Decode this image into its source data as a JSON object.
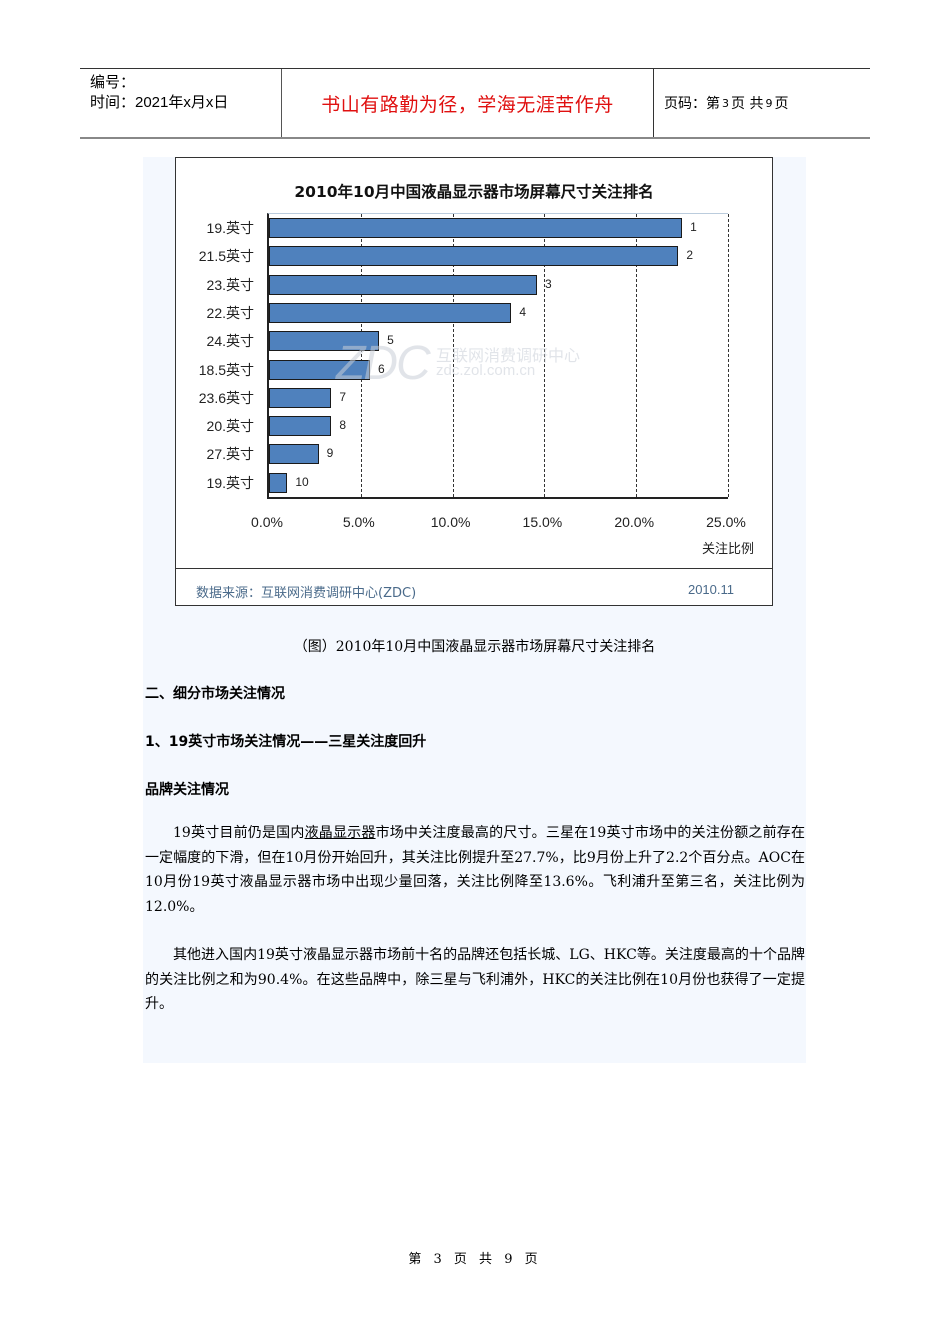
{
  "header": {
    "number_label": "编号：",
    "time_label": "时间：2021年x月x日",
    "motto": "书山有路勤为径，学海无涯苦作舟",
    "page_prefix": "页码：第",
    "page_current": "3",
    "page_mid": "页 共",
    "page_total": "9",
    "page_suffix": "页"
  },
  "chart_data": {
    "type": "bar",
    "orientation": "horizontal",
    "title": "2010年10月中国液晶显示器市场屏幕尺寸关注排名",
    "categories": [
      "19.英寸",
      "21.5英寸",
      "23.英寸",
      "22.英寸",
      "24.英寸",
      "18.5英寸",
      "23.6英寸",
      "20.英寸",
      "27.英寸",
      "19.英寸"
    ],
    "values": [
      22.5,
      22.3,
      14.6,
      13.2,
      6.0,
      5.5,
      3.4,
      3.4,
      2.7,
      1.0
    ],
    "data_labels": [
      "1",
      "2",
      "3",
      "4",
      "5",
      "6",
      "7",
      "8",
      "9",
      "10"
    ],
    "xlabel": "关注比例",
    "ylabel": "",
    "xlim": [
      0,
      25
    ],
    "xticks": [
      "0.0%",
      "5.0%",
      "10.0%",
      "15.0%",
      "20.0%",
      "25.0%"
    ],
    "grid": "vertical dashed",
    "bar_color": "#4f81bd",
    "source": "数据来源：互联网消费调研中心(ZDC)",
    "date": "2010.11",
    "watermark": {
      "logo": "ZDC",
      "name": "互联网消费调研中心",
      "url": "zdc.zol.com.cn"
    }
  },
  "caption": "（图）2010年10月中国液晶显示器市场屏幕尺寸关注排名",
  "section_heading": "二、细分市场关注情况",
  "subsection_heading": "1、19英寸市场关注情况——三星关注度回升",
  "sub_heading": "品牌关注情况",
  "paragraph1": {
    "before_link": "19英寸目前仍是国内",
    "link": "液晶显示器",
    "after_link": "市场中关注度最高的尺寸。三星在19英寸市场中的关注份额之前存在一定幅度的下滑，但在10月份开始回升，其关注比例提升至27.7%，比9月份上升了2.2个百分点。AOC在10月份19英寸液晶显示器市场中出现少量回落，关注比例降至13.6%。飞利浦升至第三名，关注比例为12.0%。"
  },
  "paragraph2": "其他进入国内19英寸液晶显示器市场前十名的品牌还包括长城、LG、HKC等。关注度最高的十个品牌的关注比例之和为90.4%。在这些品牌中，除三星与飞利浦外，HKC的关注比例在10月份也获得了一定提升。",
  "footer": "第 3 页 共 9 页"
}
